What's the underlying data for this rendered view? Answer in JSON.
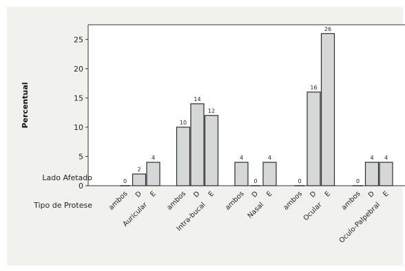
{
  "chart_data": {
    "type": "bar",
    "ylabel": "Percentual",
    "ylim": [
      0,
      27.5
    ],
    "yticks": [
      "0",
      "5",
      "10",
      "15",
      "20",
      "25"
    ],
    "row_labels": {
      "side": "Lado Afetado",
      "type": "Tipo de Protese"
    },
    "groups": [
      {
        "label": "Auricular",
        "bars": [
          {
            "category": "ambos",
            "value": 0,
            "label": "0"
          },
          {
            "category": "D",
            "value": 2,
            "label": "2"
          },
          {
            "category": "E",
            "value": 4,
            "label": "4"
          }
        ]
      },
      {
        "label": "Intra-bucal",
        "bars": [
          {
            "category": "ambos",
            "value": 10,
            "label": "10"
          },
          {
            "category": "D",
            "value": 14,
            "label": "14"
          },
          {
            "category": "E",
            "value": 12,
            "label": "12"
          }
        ]
      },
      {
        "label": "Nasal",
        "bars": [
          {
            "category": "ambos",
            "value": 4,
            "label": "4"
          },
          {
            "category": "D",
            "value": 0,
            "label": "0"
          },
          {
            "category": "E",
            "value": 4,
            "label": "4"
          }
        ]
      },
      {
        "label": "Ocular",
        "bars": [
          {
            "category": "ambos",
            "value": 0,
            "label": "0"
          },
          {
            "category": "D",
            "value": 16,
            "label": "16"
          },
          {
            "category": "E",
            "value": 26,
            "label": "26"
          }
        ]
      },
      {
        "label": "Oculo-Palpebral",
        "bars": [
          {
            "category": "ambos",
            "value": 0,
            "label": "0"
          },
          {
            "category": "D",
            "value": 4,
            "label": "4"
          },
          {
            "category": "E",
            "value": 4,
            "label": "4"
          }
        ]
      }
    ],
    "colors": {
      "bar_fill": "#d6d8d8",
      "bar_stroke": "#2a2a2a",
      "panel_bg": "#f1f2ee",
      "plot_bg": "#ffffff"
    }
  }
}
